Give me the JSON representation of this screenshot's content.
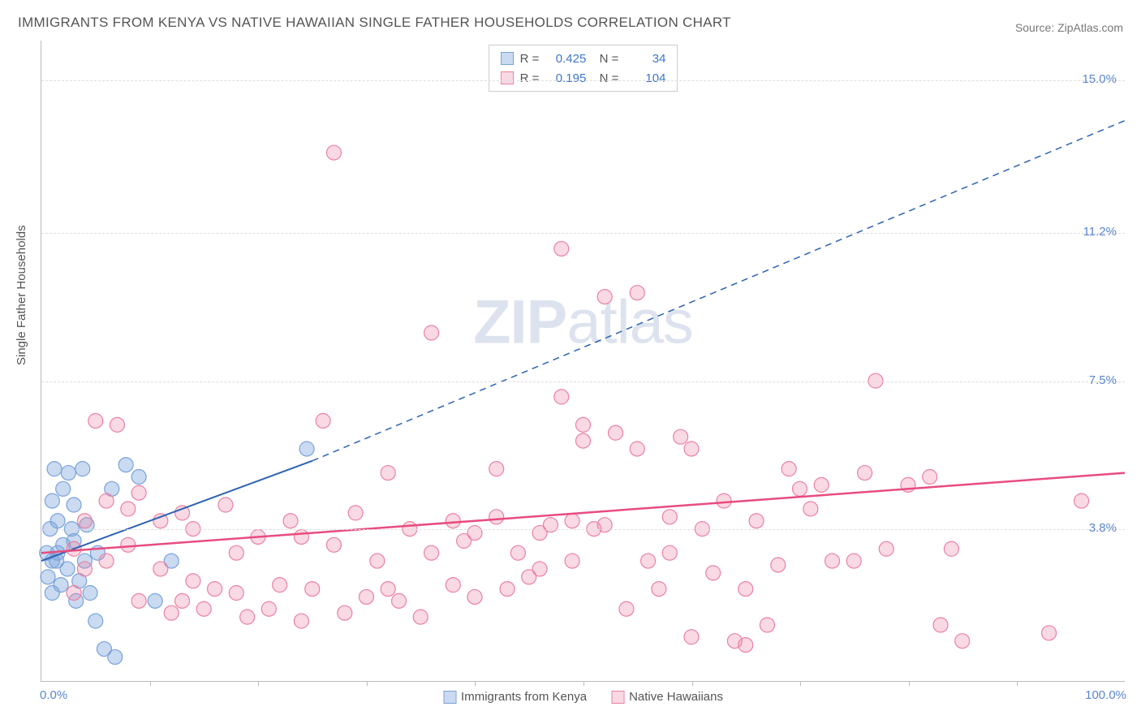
{
  "title": "IMMIGRANTS FROM KENYA VS NATIVE HAWAIIAN SINGLE FATHER HOUSEHOLDS CORRELATION CHART",
  "source_label": "Source: ZipAtlas.com",
  "y_axis_label": "Single Father Households",
  "watermark_text": "ZIPatlas",
  "chart": {
    "type": "scatter",
    "background_color": "#ffffff",
    "grid_color": "#dddddd",
    "axis_color": "#bbbbbb",
    "xlim": [
      0,
      100
    ],
    "ylim": [
      0,
      16
    ],
    "y_ticks": [
      {
        "value": 3.8,
        "label": "3.8%"
      },
      {
        "value": 7.5,
        "label": "7.5%"
      },
      {
        "value": 11.2,
        "label": "11.2%"
      },
      {
        "value": 15.0,
        "label": "15.0%"
      }
    ],
    "x_ticks": [
      10,
      20,
      30,
      40,
      50,
      60,
      70,
      80,
      90
    ],
    "x_min_label": "0.0%",
    "x_max_label": "100.0%",
    "series": [
      {
        "name": "Immigrants from Kenya",
        "fill_color": "rgba(120,162,219,0.40)",
        "stroke_color": "#7aa2db",
        "stats": {
          "R": "0.425",
          "N": "34"
        },
        "trend": {
          "from": {
            "x": 0,
            "y": 3.0
          },
          "to_solid": {
            "x": 25,
            "y": 5.5
          },
          "to_dash": {
            "x": 100,
            "y": 14.0
          },
          "color": "#2d62b3",
          "width": 2
        },
        "points": [
          {
            "x": 1.0,
            "y": 3.0
          },
          {
            "x": 1.5,
            "y": 3.2
          },
          {
            "x": 2.0,
            "y": 3.4
          },
          {
            "x": 2.4,
            "y": 2.8
          },
          {
            "x": 3.0,
            "y": 3.5
          },
          {
            "x": 3.5,
            "y": 2.5
          },
          {
            "x": 1.0,
            "y": 4.5
          },
          {
            "x": 1.5,
            "y": 4.0
          },
          {
            "x": 4.0,
            "y": 3.0
          },
          {
            "x": 4.5,
            "y": 2.2
          },
          {
            "x": 2.0,
            "y": 4.8
          },
          {
            "x": 0.8,
            "y": 3.8
          },
          {
            "x": 5.0,
            "y": 1.5
          },
          {
            "x": 5.2,
            "y": 3.2
          },
          {
            "x": 5.8,
            "y": 0.8
          },
          {
            "x": 3.0,
            "y": 4.4
          },
          {
            "x": 6.5,
            "y": 4.8
          },
          {
            "x": 6.8,
            "y": 0.6
          },
          {
            "x": 9.0,
            "y": 5.1
          },
          {
            "x": 2.5,
            "y": 5.2
          },
          {
            "x": 1.2,
            "y": 5.3
          },
          {
            "x": 10.5,
            "y": 2.0
          },
          {
            "x": 3.8,
            "y": 5.3
          },
          {
            "x": 7.8,
            "y": 5.4
          },
          {
            "x": 4.2,
            "y": 3.9
          },
          {
            "x": 12.0,
            "y": 3.0
          },
          {
            "x": 0.6,
            "y": 2.6
          },
          {
            "x": 1.8,
            "y": 2.4
          },
          {
            "x": 3.2,
            "y": 2.0
          },
          {
            "x": 24.5,
            "y": 5.8
          },
          {
            "x": 2.8,
            "y": 3.8
          },
          {
            "x": 1.4,
            "y": 3.0
          },
          {
            "x": 0.5,
            "y": 3.2
          },
          {
            "x": 1.0,
            "y": 2.2
          }
        ]
      },
      {
        "name": "Native Hawaiians",
        "fill_color": "rgba(236,128,162,0.30)",
        "stroke_color": "#ec80a2",
        "stats": {
          "R": "0.195",
          "N": "104"
        },
        "trend": {
          "from": {
            "x": 0,
            "y": 3.2
          },
          "to_solid": {
            "x": 100,
            "y": 5.2
          },
          "to_dash": null,
          "color": "#e84c7e",
          "width": 2.5
        },
        "points": [
          {
            "x": 5,
            "y": 6.5
          },
          {
            "x": 7,
            "y": 6.4
          },
          {
            "x": 6,
            "y": 4.5
          },
          {
            "x": 8,
            "y": 4.3
          },
          {
            "x": 9,
            "y": 2.0
          },
          {
            "x": 11,
            "y": 4.0
          },
          {
            "x": 12,
            "y": 1.7
          },
          {
            "x": 13,
            "y": 4.2
          },
          {
            "x": 14,
            "y": 2.5
          },
          {
            "x": 15,
            "y": 1.8
          },
          {
            "x": 16,
            "y": 2.3
          },
          {
            "x": 17,
            "y": 4.4
          },
          {
            "x": 18,
            "y": 2.2
          },
          {
            "x": 19,
            "y": 1.6
          },
          {
            "x": 20,
            "y": 3.6
          },
          {
            "x": 21,
            "y": 1.8
          },
          {
            "x": 22,
            "y": 2.4
          },
          {
            "x": 23,
            "y": 4.0
          },
          {
            "x": 24,
            "y": 1.5
          },
          {
            "x": 25,
            "y": 2.3
          },
          {
            "x": 26,
            "y": 6.5
          },
          {
            "x": 27,
            "y": 13.2
          },
          {
            "x": 28,
            "y": 1.7
          },
          {
            "x": 29,
            "y": 4.2
          },
          {
            "x": 30,
            "y": 2.1
          },
          {
            "x": 31,
            "y": 3.0
          },
          {
            "x": 32,
            "y": 5.2
          },
          {
            "x": 32,
            "y": 2.3
          },
          {
            "x": 33,
            "y": 2.0
          },
          {
            "x": 34,
            "y": 3.8
          },
          {
            "x": 35,
            "y": 1.6
          },
          {
            "x": 36,
            "y": 8.7
          },
          {
            "x": 38,
            "y": 4.0
          },
          {
            "x": 38,
            "y": 2.4
          },
          {
            "x": 40,
            "y": 3.7
          },
          {
            "x": 40,
            "y": 2.1
          },
          {
            "x": 42,
            "y": 5.3
          },
          {
            "x": 42,
            "y": 4.1
          },
          {
            "x": 43,
            "y": 2.3
          },
          {
            "x": 45,
            "y": 2.6
          },
          {
            "x": 46,
            "y": 3.7
          },
          {
            "x": 47,
            "y": 3.9
          },
          {
            "x": 48,
            "y": 10.8
          },
          {
            "x": 48,
            "y": 7.1
          },
          {
            "x": 49,
            "y": 4.0
          },
          {
            "x": 49,
            "y": 3.0
          },
          {
            "x": 50,
            "y": 6.4
          },
          {
            "x": 51,
            "y": 3.8
          },
          {
            "x": 50,
            "y": 6.0
          },
          {
            "x": 52,
            "y": 9.6
          },
          {
            "x": 52,
            "y": 3.9
          },
          {
            "x": 53,
            "y": 6.2
          },
          {
            "x": 54,
            "y": 1.8
          },
          {
            "x": 55,
            "y": 5.8
          },
          {
            "x": 55,
            "y": 9.7
          },
          {
            "x": 56,
            "y": 3.0
          },
          {
            "x": 57,
            "y": 2.3
          },
          {
            "x": 58,
            "y": 4.1
          },
          {
            "x": 59,
            "y": 6.1
          },
          {
            "x": 60,
            "y": 5.8
          },
          {
            "x": 60,
            "y": 1.1
          },
          {
            "x": 61,
            "y": 3.8
          },
          {
            "x": 62,
            "y": 2.7
          },
          {
            "x": 63,
            "y": 4.5
          },
          {
            "x": 64,
            "y": 1.0
          },
          {
            "x": 65,
            "y": 2.3
          },
          {
            "x": 65,
            "y": 0.9
          },
          {
            "x": 66,
            "y": 4.0
          },
          {
            "x": 67,
            "y": 1.4
          },
          {
            "x": 69,
            "y": 5.3
          },
          {
            "x": 70,
            "y": 4.8
          },
          {
            "x": 71,
            "y": 4.3
          },
          {
            "x": 72,
            "y": 4.9
          },
          {
            "x": 73,
            "y": 3.0
          },
          {
            "x": 75,
            "y": 3.0
          },
          {
            "x": 76,
            "y": 5.2
          },
          {
            "x": 77,
            "y": 7.5
          },
          {
            "x": 78,
            "y": 3.3
          },
          {
            "x": 3,
            "y": 3.3
          },
          {
            "x": 4,
            "y": 2.8
          },
          {
            "x": 80,
            "y": 4.9
          },
          {
            "x": 82,
            "y": 5.1
          },
          {
            "x": 83,
            "y": 1.4
          },
          {
            "x": 84,
            "y": 3.3
          },
          {
            "x": 85,
            "y": 1.0
          },
          {
            "x": 93,
            "y": 1.2
          },
          {
            "x": 96,
            "y": 4.5
          },
          {
            "x": 11,
            "y": 2.8
          },
          {
            "x": 13,
            "y": 2.0
          },
          {
            "x": 6,
            "y": 3.0
          },
          {
            "x": 8,
            "y": 3.4
          },
          {
            "x": 9,
            "y": 4.7
          },
          {
            "x": 4,
            "y": 4.0
          },
          {
            "x": 3,
            "y": 2.2
          },
          {
            "x": 39,
            "y": 3.5
          },
          {
            "x": 44,
            "y": 3.2
          },
          {
            "x": 46,
            "y": 2.8
          },
          {
            "x": 58,
            "y": 3.2
          },
          {
            "x": 68,
            "y": 2.9
          },
          {
            "x": 14,
            "y": 3.8
          },
          {
            "x": 18,
            "y": 3.2
          },
          {
            "x": 36,
            "y": 3.2
          },
          {
            "x": 27,
            "y": 3.4
          },
          {
            "x": 24,
            "y": 3.6
          }
        ]
      }
    ]
  }
}
